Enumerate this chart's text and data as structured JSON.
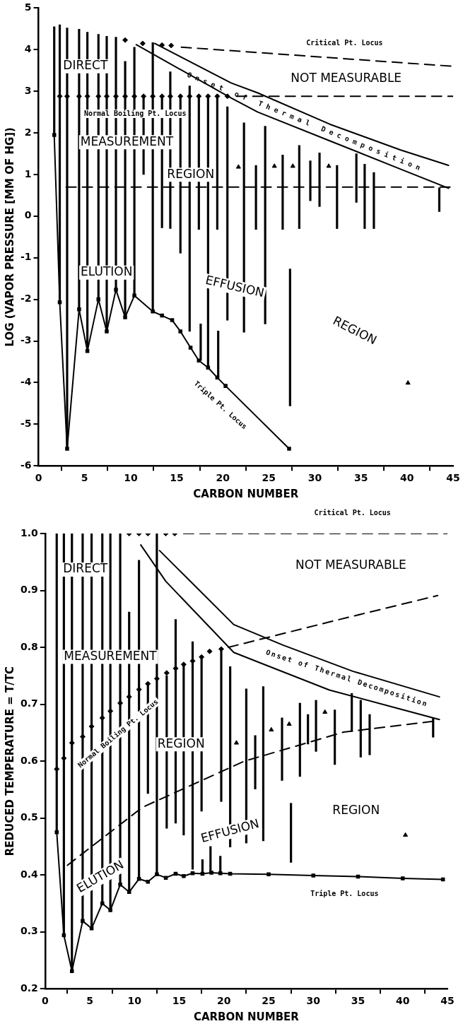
{
  "chart_data": [
    {
      "type": "line",
      "xlabel": "CARBON NUMBER",
      "ylabel": "LOG (VAPOR PRESSURE [MM OF HG])",
      "xlim": [
        0,
        45
      ],
      "xticks": [
        0,
        5,
        10,
        15,
        20,
        25,
        30,
        35,
        40,
        45
      ],
      "ylim": [
        -6,
        5
      ],
      "yticks": [
        -6,
        -5,
        -4,
        -3,
        -2,
        -1,
        0,
        1,
        2,
        3,
        4,
        5
      ],
      "grid": false,
      "legend": false,
      "series": [
        {
          "type": "bar",
          "color": "#000000",
          "x": [
            1.7,
            2.3,
            3.1,
            4.4,
            5.3,
            6.5,
            7.4,
            8.4,
            9.4,
            10.4,
            11.4,
            12.4,
            13.4,
            14.3,
            15.4,
            16.4,
            17.4,
            17.6,
            18.4,
            19.4,
            19.5,
            20.5,
            22.3,
            23.6,
            24.6,
            26.5,
            27.3,
            28.3,
            29.5,
            30.5,
            32.4,
            34.5,
            35.4,
            36.4,
            43.5
          ],
          "base": [
            1.95,
            -2.07,
            -5.59,
            -2.24,
            -3.24,
            -2.0,
            -2.77,
            -1.77,
            -2.43,
            -1.91,
            1.0,
            -2.29,
            -0.28,
            -0.3,
            -0.89,
            -2.77,
            -0.32,
            -3.47,
            -3.6,
            -0.32,
            -3.88,
            -2.5,
            -2.79,
            -0.32,
            -2.59,
            -0.32,
            -4.56,
            -0.3,
            0.37,
            0.23,
            -0.3,
            0.33,
            -0.3,
            -0.3,
            0.11
          ],
          "values": [
            2.6,
            6.67,
            10.11,
            6.73,
            7.66,
            6.37,
            7.09,
            6.07,
            6.15,
            5.97,
            1.88,
            6.46,
            3.16,
            3.77,
            3.79,
            5.9,
            3.2,
            0.88,
            6.48,
            3.2,
            1.12,
            5.13,
            5.03,
            1.54,
            4.75,
            1.79,
            3.29,
            2.0,
            0.96,
            1.29,
            1.52,
            1.17,
            1.55,
            1.35,
            0.57
          ]
        },
        {
          "type": "scatter",
          "color": "#000000",
          "marker": "diamond",
          "x": [
            2.3,
            3.1,
            4.4,
            5.3,
            6.5,
            7.4,
            8.4,
            9.4,
            10.4,
            11.4,
            12.4,
            13.4,
            14.3,
            15.4,
            16.4,
            17.4,
            18.4,
            19.4,
            20.5
          ],
          "values": [
            2.88,
            2.88,
            2.88,
            2.88,
            2.88,
            2.88,
            2.88,
            2.88,
            2.88,
            2.88,
            2.88,
            2.88,
            2.88,
            2.88,
            2.88,
            2.88,
            2.88,
            2.88,
            2.88
          ]
        },
        {
          "color": "#000000",
          "line_style": "dashed",
          "x": [
            21.5,
            45
          ],
          "values": [
            2.88,
            2.88
          ]
        },
        {
          "type": "scatter",
          "color": "#000000",
          "marker": "diamond",
          "x": [
            9.4,
            11.3,
            13.4,
            14.4
          ],
          "values": [
            4.23,
            4.15,
            4.11,
            4.1
          ]
        },
        {
          "color": "#000000",
          "line_style": "dashed",
          "x": [
            15.5,
            45
          ],
          "values": [
            4.06,
            3.6
          ]
        },
        {
          "color": "#000000",
          "line_style": "solid",
          "x": [
            12.6,
            20.9,
            23.8,
            31.6,
            39.3,
            44.5
          ],
          "values": [
            4.15,
            3.2,
            2.96,
            2.21,
            1.59,
            1.22
          ]
        },
        {
          "color": "#000000",
          "line_style": "solid",
          "x": [
            10.6,
            20.9,
            23.8,
            31.6,
            39.3,
            44.5
          ],
          "values": [
            4.12,
            2.84,
            2.5,
            1.81,
            1.13,
            0.67
          ]
        },
        {
          "color": "#000000",
          "line_style": "solid",
          "marker": "square",
          "x": [
            1.7,
            2.3,
            3.1,
            4.4,
            5.3,
            6.5,
            7.4,
            8.4,
            9.4,
            10.4,
            12.4,
            13.4,
            14.5,
            15.4,
            16.5,
            17.4,
            18.4,
            19.4,
            20.3,
            27.2
          ],
          "values": [
            1.95,
            -2.07,
            -5.59,
            -2.24,
            -3.24,
            -2.0,
            -2.77,
            -1.77,
            -2.43,
            -1.91,
            -2.29,
            -2.39,
            -2.5,
            -2.77,
            -3.16,
            -3.47,
            -3.64,
            -3.88,
            -4.08,
            -5.59
          ]
        },
        {
          "color": "#000000",
          "line_style": "dashed",
          "x": [
            3,
            45
          ],
          "values": [
            0.7,
            0.7
          ]
        },
        {
          "type": "scatter",
          "color": "#000000",
          "marker": "triangle",
          "x": [
            21.7,
            25.6,
            27.6,
            31.5,
            40.1
          ],
          "values": [
            1.18,
            1.2,
            1.2,
            1.2,
            -4.01
          ]
        }
      ],
      "annotations": [
        "Critical Pt. Locus",
        "NOT MEASURABLE",
        "DIRECT",
        "Normal Boiling Pt. Locus",
        "MEASUREMENT",
        "REGION",
        "Onset of Thermal Decomposition",
        "ELUTION",
        "EFFUSION",
        "REGION",
        "Triple Pt. Locus"
      ]
    },
    {
      "type": "line",
      "xlabel": "CARBON NUMBER",
      "ylabel": "REDUCED TEMPERATURE = T/TC",
      "xlim": [
        0,
        45
      ],
      "xticks": [
        0,
        5,
        10,
        15,
        20,
        25,
        30,
        35,
        40,
        45
      ],
      "ylim": [
        0.2,
        1.0
      ],
      "yticks": [
        0.2,
        0.3,
        0.4,
        0.5,
        0.6,
        0.7,
        0.8,
        0.9,
        {
          "value": 1.0,
          "label": "1.0"
        }
      ],
      "grid": false,
      "legend": false,
      "series": [
        {
          "type": "bar",
          "color": "#000000",
          "x": [
            1.3,
            2.1,
            3.0,
            4.2,
            5.2,
            6.4,
            7.3,
            8.4,
            9.4,
            10.5,
            11.5,
            12.5,
            13.6,
            14.6,
            15.5,
            16.5,
            17.5,
            17.6,
            18.5,
            19.6,
            19.7,
            20.7,
            22.5,
            23.5,
            24.4,
            26.5,
            27.5,
            28.5,
            29.4,
            30.3,
            32.4,
            34.3,
            35.3,
            36.3,
            43.4
          ],
          "base": [
            0.475,
            0.294,
            0.231,
            0.319,
            0.306,
            0.35,
            0.338,
            0.383,
            0.37,
            0.393,
            0.543,
            0.401,
            0.482,
            0.491,
            0.47,
            0.41,
            0.512,
            0.403,
            0.404,
            0.403,
            0.529,
            0.449,
            0.456,
            0.551,
            0.46,
            0.566,
            0.422,
            0.573,
            0.63,
            0.617,
            0.594,
            0.652,
            0.607,
            0.611,
            0.642
          ],
          "values": [
            0.525,
            0.706,
            0.769,
            0.681,
            0.694,
            0.65,
            0.662,
            0.617,
            0.492,
            0.56,
            0.193,
            0.599,
            0.268,
            0.358,
            0.3,
            0.4,
            0.271,
            0.024,
            0.046,
            0.03,
            0.268,
            0.317,
            0.271,
            0.094,
            0.271,
            0.11,
            0.104,
            0.129,
            0.052,
            0.09,
            0.096,
            0.067,
            0.1,
            0.071,
            0.034
          ]
        },
        {
          "type": "scatter",
          "color": "#000000",
          "marker": "diamond",
          "x": [
            1.3,
            2.1,
            3.0,
            4.2,
            5.2,
            6.4,
            7.3,
            8.4,
            9.4,
            10.5,
            11.5,
            12.5,
            13.6,
            14.6,
            15.5,
            16.5,
            17.5,
            18.4,
            19.7
          ],
          "values": [
            0.586,
            0.605,
            0.632,
            0.643,
            0.661,
            0.676,
            0.688,
            0.702,
            0.713,
            0.726,
            0.736,
            0.745,
            0.755,
            0.763,
            0.77,
            0.776,
            0.783,
            0.793,
            0.797
          ]
        },
        {
          "color": "#000000",
          "line_style": "dashed",
          "x": [
            20.5,
            31.9,
            43.9
          ],
          "values": [
            0.8,
            0.845,
            0.891
          ]
        },
        {
          "type": "scatter",
          "color": "#000000",
          "marker": "diamond",
          "x": [
            9.4,
            10.5,
            11.5,
            13.5,
            14.5
          ],
          "values": [
            1.0,
            1.0,
            1.0,
            1.0,
            1.0
          ]
        },
        {
          "color": "#000000",
          "line_style": "dashed",
          "x": [
            15.5,
            45
          ],
          "values": [
            1.0,
            1.0
          ]
        },
        {
          "color": "#000000",
          "line_style": "solid",
          "x": [
            12.8,
            16,
            21.1,
            26.6,
            34.4,
            44.1
          ],
          "values": [
            0.97,
            0.92,
            0.84,
            0.804,
            0.758,
            0.713
          ]
        },
        {
          "color": "#000000",
          "line_style": "solid",
          "x": [
            10.7,
            13.5,
            21.1,
            24,
            31.8,
            39.6,
            44.1
          ],
          "values": [
            0.98,
            0.916,
            0.791,
            0.773,
            0.725,
            0.692,
            0.673
          ]
        },
        {
          "color": "#000000",
          "line_style": "solid",
          "marker": "square",
          "x": [
            1.3,
            2.1,
            3.0,
            4.2,
            5.2,
            6.4,
            7.3,
            8.4,
            9.4,
            10.5,
            11.5,
            12.5,
            13.5,
            14.6,
            15.5,
            16.5,
            17.6,
            18.6,
            19.6,
            20.7,
            25,
            30,
            35,
            40,
            44.5
          ],
          "values": [
            0.475,
            0.294,
            0.231,
            0.319,
            0.306,
            0.35,
            0.338,
            0.383,
            0.37,
            0.393,
            0.388,
            0.401,
            0.395,
            0.402,
            0.398,
            0.403,
            0.402,
            0.404,
            0.403,
            0.402,
            0.401,
            0.399,
            0.397,
            0.394,
            0.392
          ]
        },
        {
          "color": "#000000",
          "line_style": "dashed",
          "x": [
            2.5,
            10.9,
            22.3,
            33.4,
            44
          ],
          "values": [
            0.417,
            0.519,
            0.6,
            0.651,
            0.671
          ]
        },
        {
          "type": "scatter",
          "color": "#000000",
          "marker": "triangle",
          "x": [
            21.4,
            25.3,
            27.3,
            31.3,
            40.3
          ],
          "values": [
            0.632,
            0.655,
            0.665,
            0.686,
            0.47
          ]
        }
      ],
      "annotations": [
        "Critical Pt. Locus",
        "NOT MEASURABLE",
        "DIRECT",
        "MEASUREMENT",
        "Normal Boiling Pt. Locus",
        "Onset of Thermal Decomposition",
        "REGION",
        "REGION",
        "EFFUSION",
        "ELUTION",
        "Triple Pt. Locus"
      ]
    }
  ]
}
